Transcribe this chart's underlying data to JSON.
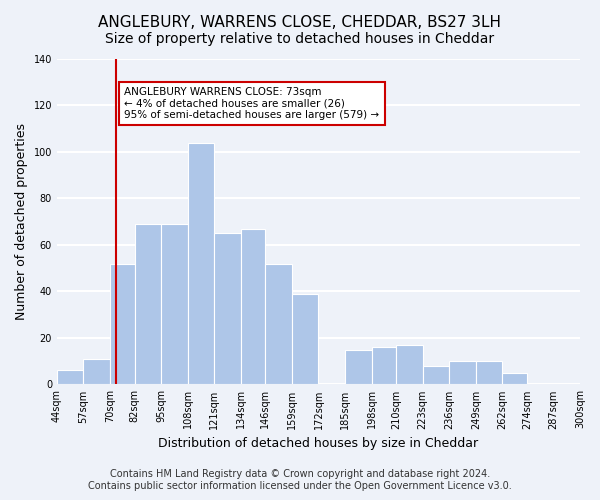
{
  "title": "ANGLEBURY, WARRENS CLOSE, CHEDDAR, BS27 3LH",
  "subtitle": "Size of property relative to detached houses in Cheddar",
  "xlabel": "Distribution of detached houses by size in Cheddar",
  "ylabel": "Number of detached properties",
  "bar_edges": [
    44,
    57,
    70,
    82,
    95,
    108,
    121,
    134,
    146,
    159,
    172,
    185,
    198,
    210,
    223,
    236,
    249,
    262,
    274,
    287,
    300
  ],
  "bar_heights": [
    6,
    11,
    52,
    69,
    69,
    104,
    65,
    67,
    52,
    39,
    0,
    15,
    16,
    17,
    8,
    10,
    10,
    5,
    0,
    0
  ],
  "bar_color": "#aec6e8",
  "vline_x": 73,
  "vline_color": "#cc0000",
  "annotation_title": "ANGLEBURY WARRENS CLOSE: 73sqm",
  "annotation_line1": "← 4% of detached houses are smaller (26)",
  "annotation_line2": "95% of semi-detached houses are larger (579) →",
  "annotation_box_color": "#cc0000",
  "ylim": [
    0,
    140
  ],
  "yticks": [
    0,
    20,
    40,
    60,
    80,
    100,
    120,
    140
  ],
  "xtick_labels": [
    "44sqm",
    "57sqm",
    "70sqm",
    "82sqm",
    "95sqm",
    "108sqm",
    "121sqm",
    "134sqm",
    "146sqm",
    "159sqm",
    "172sqm",
    "185sqm",
    "198sqm",
    "210sqm",
    "223sqm",
    "236sqm",
    "249sqm",
    "262sqm",
    "274sqm",
    "287sqm",
    "300sqm"
  ],
  "footer_line1": "Contains HM Land Registry data © Crown copyright and database right 2024.",
  "footer_line2": "Contains public sector information licensed under the Open Government Licence v3.0.",
  "bg_color": "#eef2f9",
  "plot_bg_color": "#eef2f9",
  "grid_color": "#ffffff",
  "title_fontsize": 11,
  "subtitle_fontsize": 10,
  "axis_label_fontsize": 9,
  "tick_fontsize": 7,
  "footer_fontsize": 7
}
